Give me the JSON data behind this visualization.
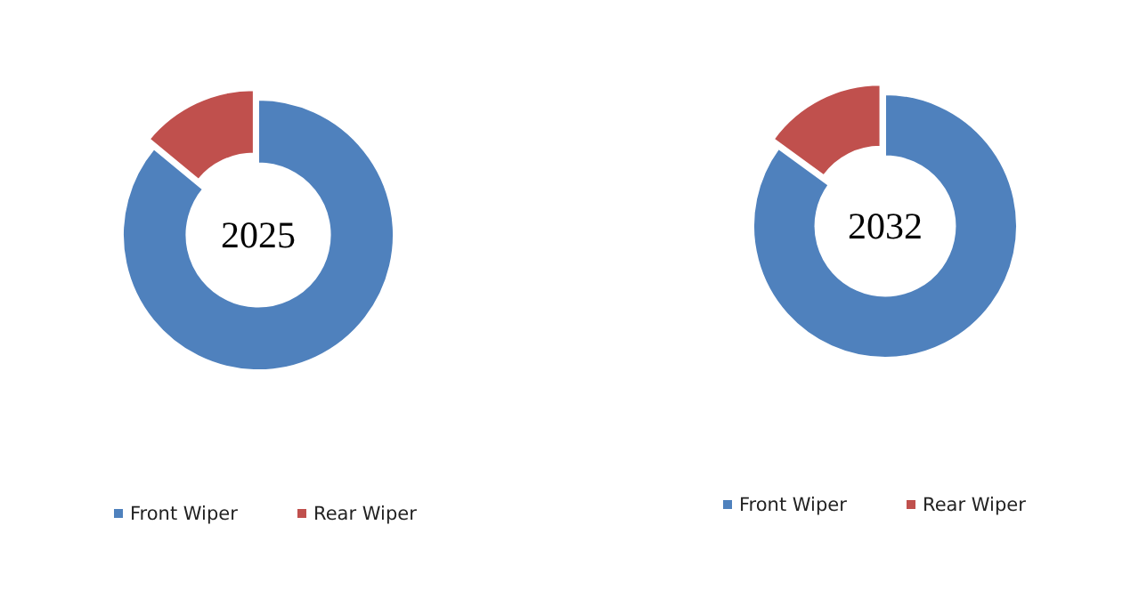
{
  "chart_data": [
    {
      "type": "donut",
      "title": "2025",
      "categories": [
        "Front Wiper",
        "Rear Wiper"
      ],
      "values": [
        86,
        14
      ],
      "colors": [
        "#4f81bd",
        "#c0504d"
      ],
      "legend": "bottom"
    },
    {
      "type": "donut",
      "title": "2032",
      "categories": [
        "Front Wiper",
        "Rear Wiper"
      ],
      "values": [
        85,
        15
      ],
      "colors": [
        "#4f81bd",
        "#c0504d"
      ],
      "legend": "bottom"
    }
  ]
}
